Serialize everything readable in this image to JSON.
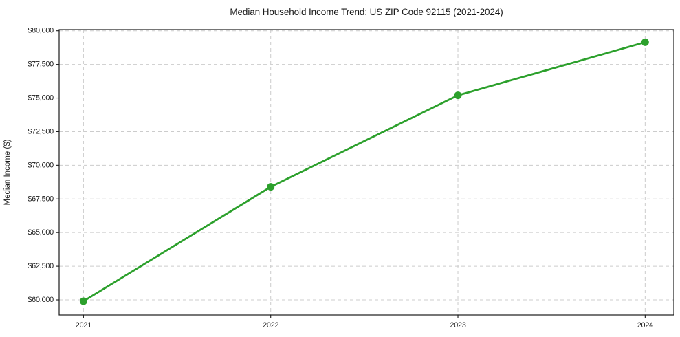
{
  "chart_data": {
    "type": "line",
    "title": "Median Household Income Trend: US ZIP Code 92115 (2021-2024)",
    "xlabel": "",
    "ylabel": "Median Income ($)",
    "x": [
      2021,
      2022,
      2023,
      2024
    ],
    "series": [
      {
        "name": "Median Household Income",
        "values": [
          59900,
          68400,
          75200,
          79150
        ],
        "color": "#2ca02c",
        "marker": "circle",
        "line_width": 2.8,
        "marker_radius": 5.5
      }
    ],
    "xlim": [
      2020.87,
      2024.153
    ],
    "ylim": [
      58876,
      80087
    ],
    "xticks": {
      "values": [
        2021,
        2022,
        2023,
        2024
      ],
      "labels": [
        "2021",
        "2022",
        "2023",
        "2024"
      ]
    },
    "yticks": {
      "values": [
        60000,
        62500,
        65000,
        67500,
        70000,
        72500,
        75000,
        77500,
        80000
      ],
      "labels": [
        "$60,000",
        "$62,500",
        "$65,000",
        "$67,500",
        "$70,000",
        "$72,500",
        "$75,000",
        "$77,500",
        "$80,000"
      ]
    },
    "grid": true,
    "grid_color": "#cccccc",
    "grid_dash": "5,4",
    "spine_color": "#1a1a1a",
    "background": "#ffffff",
    "legend_position": "none"
  }
}
